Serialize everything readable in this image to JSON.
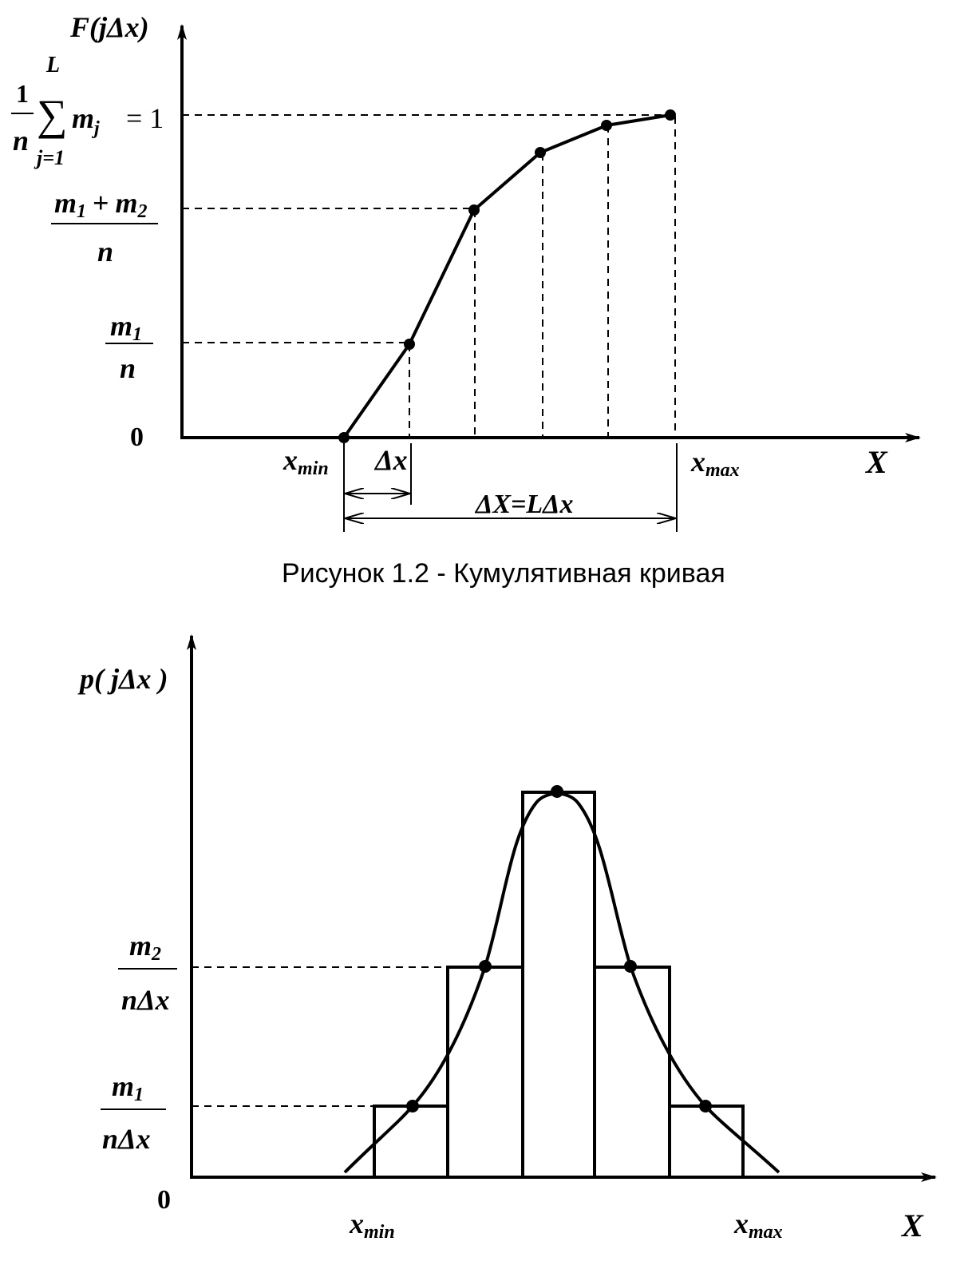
{
  "top": {
    "y_axis_label": "F(jΔx)",
    "x_axis_label": "X",
    "x_min": "x",
    "x_min_sub": "min",
    "x_max": "x",
    "x_max_sub": "max",
    "delta_x": "Δx",
    "range_label": "ΔX=LΔx",
    "tick_zero": "0",
    "tick_m1_num": "m",
    "tick_m1_num_sub": "1",
    "tick_m1_den": "n",
    "tick_m12_num_a": "m",
    "tick_m12_num_a_sub": "1",
    "tick_m12_plus": "+",
    "tick_m12_num_b": "m",
    "tick_m12_num_b_sub": "2",
    "tick_m12_den": "n",
    "tick_sum_one": "1",
    "tick_sum_n": "n",
    "tick_sum_upper": "L",
    "tick_sum_symbol": "∑",
    "tick_sum_m": "m",
    "tick_sum_m_sub": "j",
    "tick_sum_eq": "= 1",
    "tick_sum_lower": "j=1",
    "caption": "Рисунок 1.2 - Кумулятивная кривая"
  },
  "bottom": {
    "y_axis_label": "p( jΔx )",
    "x_axis_label": "X",
    "x_min": "x",
    "x_min_sub": "min",
    "x_max": "x",
    "x_max_sub": "max",
    "tick_zero": "0",
    "tick_m1_num": "m",
    "tick_m1_num_sub": "1",
    "tick_m1_den": "nΔx",
    "tick_m2_num": "m",
    "tick_m2_num_sub": "2",
    "tick_m2_den": "nΔx"
  }
}
